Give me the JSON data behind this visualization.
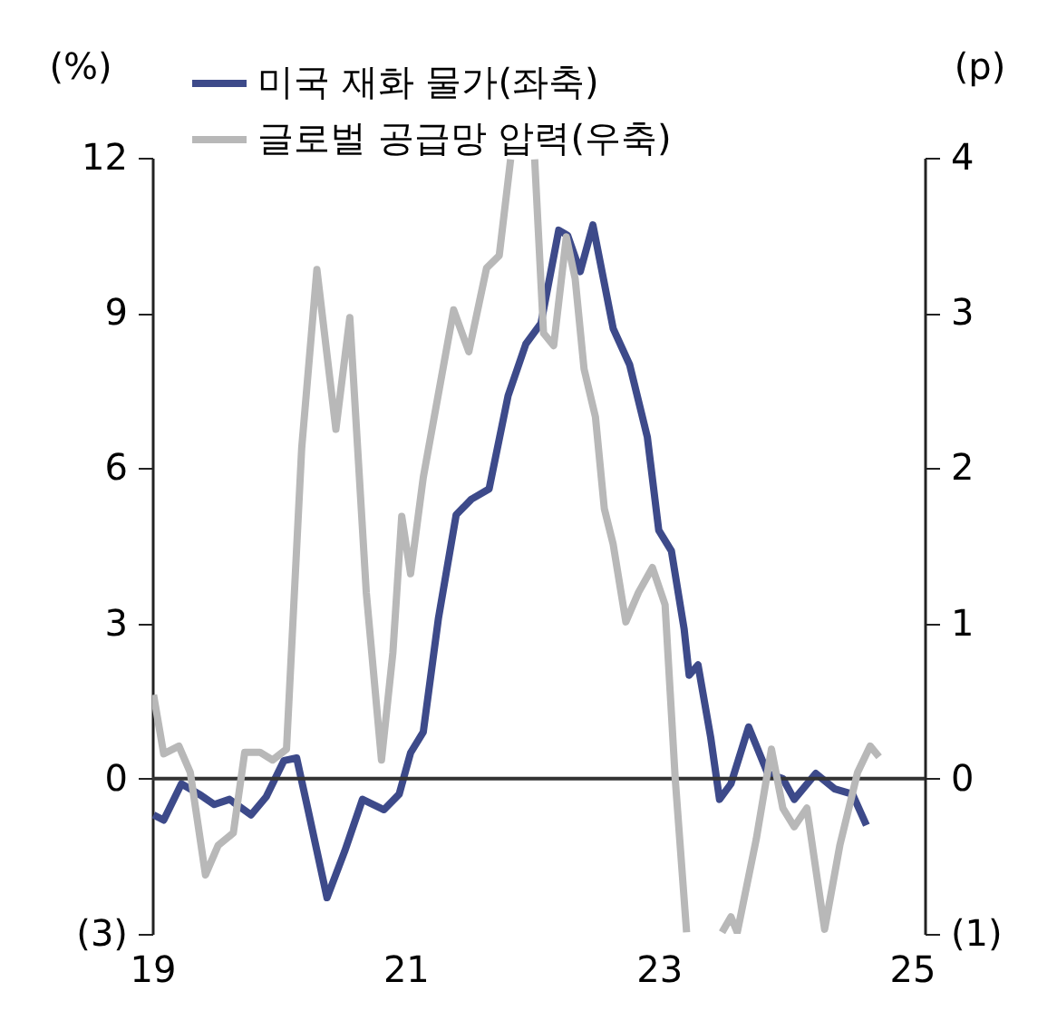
{
  "chart_data": {
    "type": "line",
    "ylabel": "(%)",
    "y2label": "(p)",
    "xlim": [
      19,
      25.1
    ],
    "xticks": [
      19,
      21,
      23,
      25
    ],
    "ylim": [
      -3,
      12
    ],
    "yticks": [
      {
        "value": -3,
        "label": "(3)"
      },
      0,
      3,
      6,
      9,
      12
    ],
    "y2lim": [
      -1,
      4
    ],
    "y2ticks": [
      {
        "value": -1,
        "label": "(1)"
      },
      0,
      1,
      2,
      3,
      4
    ],
    "ref_lines": [
      {
        "axis": "y",
        "value": 0,
        "color": "#333333"
      }
    ],
    "grid": false,
    "legend": "top",
    "marker": "none",
    "line_style": "solid",
    "series": [
      {
        "name": "미국 재화 물가(좌축)",
        "color": "#3d4a8a",
        "x": [
          19.01,
          19.09,
          19.23,
          19.37,
          19.49,
          19.61,
          19.78,
          19.9,
          20.04,
          20.14,
          20.23,
          20.38,
          20.52,
          20.66,
          20.83,
          20.95,
          21.04,
          21.14,
          21.26,
          21.4,
          21.52,
          21.66,
          21.81,
          21.95,
          22.07,
          22.21,
          22.28,
          22.38,
          22.48,
          22.64,
          22.77,
          22.91,
          23.0,
          23.1,
          23.2,
          23.24,
          23.31,
          23.41,
          23.48,
          23.57,
          23.71,
          23.86,
          23.98,
          24.07,
          24.24,
          24.39,
          24.53,
          24.64
        ],
        "values": [
          -0.7,
          -0.8,
          -0.1,
          -0.3,
          -0.5,
          -0.4,
          -0.7,
          -0.35,
          0.35,
          0.4,
          -0.6,
          -2.3,
          -1.4,
          -0.4,
          -0.6,
          -0.3,
          0.5,
          0.9,
          3.1,
          5.1,
          5.4,
          5.6,
          7.4,
          8.4,
          8.8,
          10.6,
          10.5,
          9.8,
          10.7,
          8.7,
          8.0,
          6.6,
          4.8,
          4.4,
          2.9,
          2.0,
          2.2,
          0.8,
          -0.4,
          -0.1,
          1.0,
          0.1,
          0.0,
          -0.4,
          0.1,
          -0.2,
          -0.3,
          -0.9
        ]
      },
      {
        "name": "글로벌 공급망 압력(우축)",
        "color": "#b8b8b8",
        "axis": "y2",
        "x": [
          19.01,
          19.09,
          19.21,
          19.3,
          19.42,
          19.52,
          19.64,
          19.73,
          19.85,
          19.95,
          20.06,
          20.18,
          20.3,
          20.45,
          20.56,
          20.69,
          20.81,
          20.9,
          20.97,
          21.04,
          21.14,
          21.38,
          21.5,
          21.64,
          21.74,
          21.83,
          21.93,
          22.02,
          22.09,
          22.17,
          22.27,
          22.34,
          22.41,
          22.5,
          22.57,
          22.64,
          22.74,
          22.84,
          22.95,
          23.05,
          23.13,
          23.22,
          23.36,
          23.5,
          23.57,
          23.62,
          23.77,
          23.89,
          23.98,
          24.07,
          24.17,
          24.31,
          24.43,
          24.57,
          24.67,
          24.74
        ],
        "values": [
          0.54,
          0.16,
          0.21,
          0.04,
          -0.62,
          -0.43,
          -0.35,
          0.17,
          0.17,
          0.12,
          0.19,
          2.13,
          3.28,
          2.25,
          2.97,
          1.2,
          0.12,
          0.81,
          1.69,
          1.32,
          1.94,
          3.02,
          2.75,
          3.29,
          3.37,
          3.99,
          null,
          3.99,
          2.87,
          2.79,
          3.49,
          3.22,
          2.64,
          2.33,
          1.74,
          1.51,
          1.01,
          1.2,
          1.36,
          1.12,
          0.0,
          -0.99,
          null,
          -0.99,
          -0.89,
          -0.99,
          -0.39,
          0.19,
          -0.19,
          -0.31,
          -0.19,
          -0.97,
          -0.43,
          0.04,
          0.21,
          0.14
        ]
      }
    ]
  }
}
